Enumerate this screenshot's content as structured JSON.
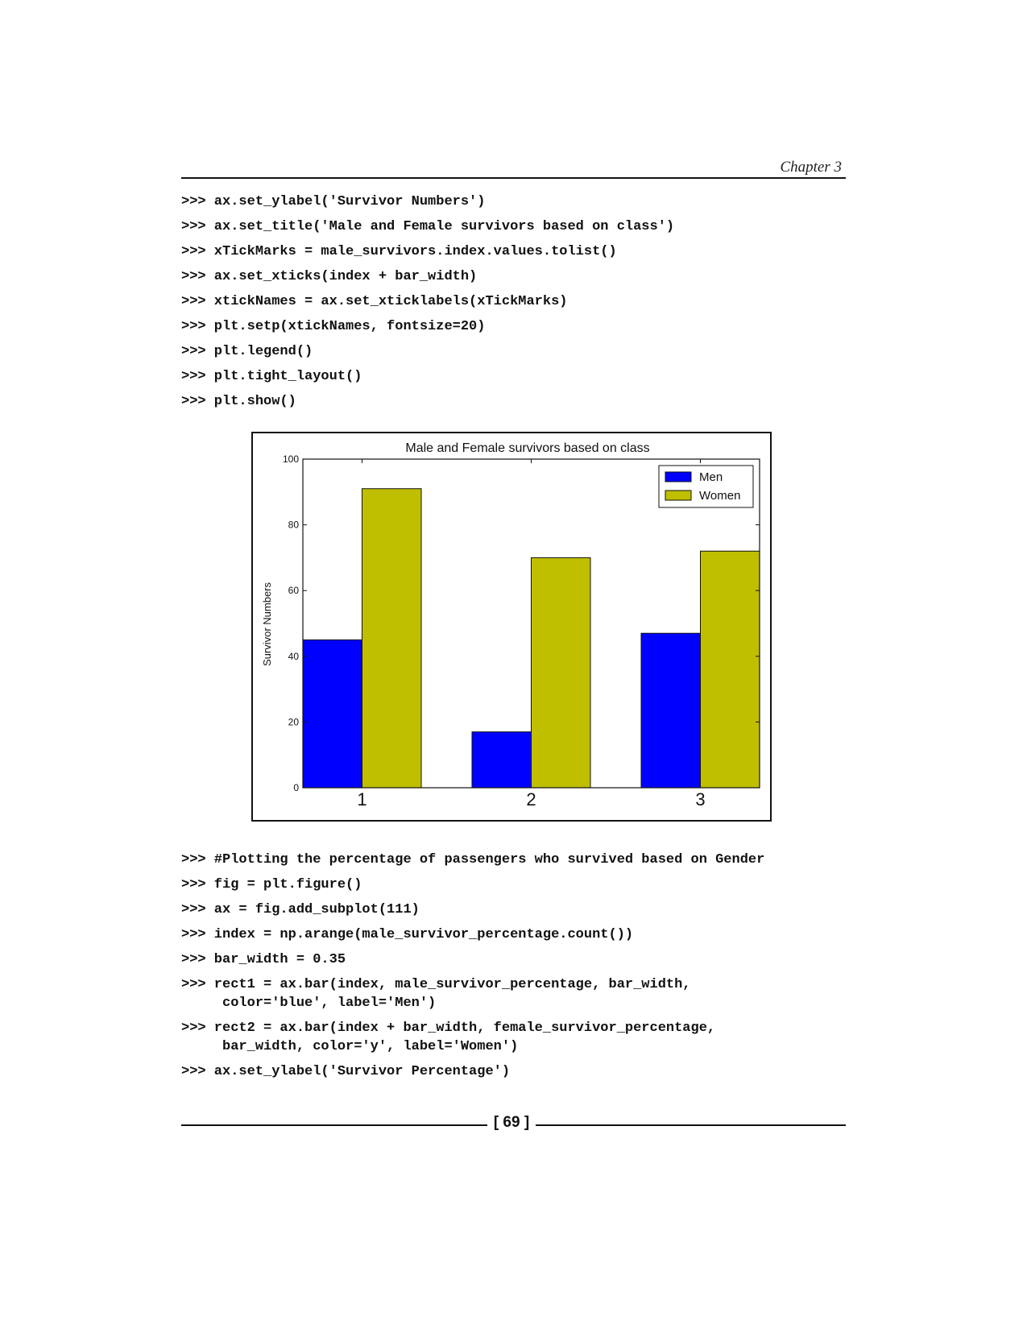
{
  "header": {
    "chapter": "Chapter 3"
  },
  "code_top": [
    ">>> ax.set_ylabel('Survivor Numbers')",
    ">>> ax.set_title('Male and Female survivors based on class')",
    ">>> xTickMarks = male_survivors.index.values.tolist()",
    ">>> ax.set_xticks(index + bar_width)",
    ">>> xtickNames = ax.set_xticklabels(xTickMarks)",
    ">>> plt.setp(xtickNames, fontsize=20)",
    ">>> plt.legend()",
    ">>> plt.tight_layout()",
    ">>> plt.show()"
  ],
  "chart_data": {
    "type": "bar",
    "title": "Male and Female survivors based on class",
    "xlabel": "",
    "ylabel": "Survivor Numbers",
    "categories": [
      "1",
      "2",
      "3"
    ],
    "series": [
      {
        "name": "Men",
        "color": "#0000ff",
        "values": [
          45,
          17,
          47
        ]
      },
      {
        "name": "Women",
        "color": "#bfbf00",
        "values": [
          91,
          70,
          72
        ]
      }
    ],
    "ylim": [
      0,
      100
    ],
    "yticks": [
      "0",
      "20",
      "40",
      "60",
      "80",
      "100"
    ],
    "legend": "top-right",
    "grid": false
  },
  "code_bottom": [
    ">>> #Plotting the percentage of passengers who survived based on Gender",
    ">>> fig = plt.figure()",
    ">>> ax = fig.add_subplot(111)",
    ">>> index = np.arange(male_survivor_percentage.count())",
    ">>> bar_width = 0.35",
    ">>> rect1 = ax.bar(index, male_survivor_percentage, bar_width,\n     color='blue', label='Men')",
    ">>> rect2 = ax.bar(index + bar_width, female_survivor_percentage,\n     bar_width, color='y', label='Women')",
    ">>> ax.set_ylabel('Survivor Percentage')"
  ],
  "footer": {
    "page_number": "[ 69 ]"
  }
}
